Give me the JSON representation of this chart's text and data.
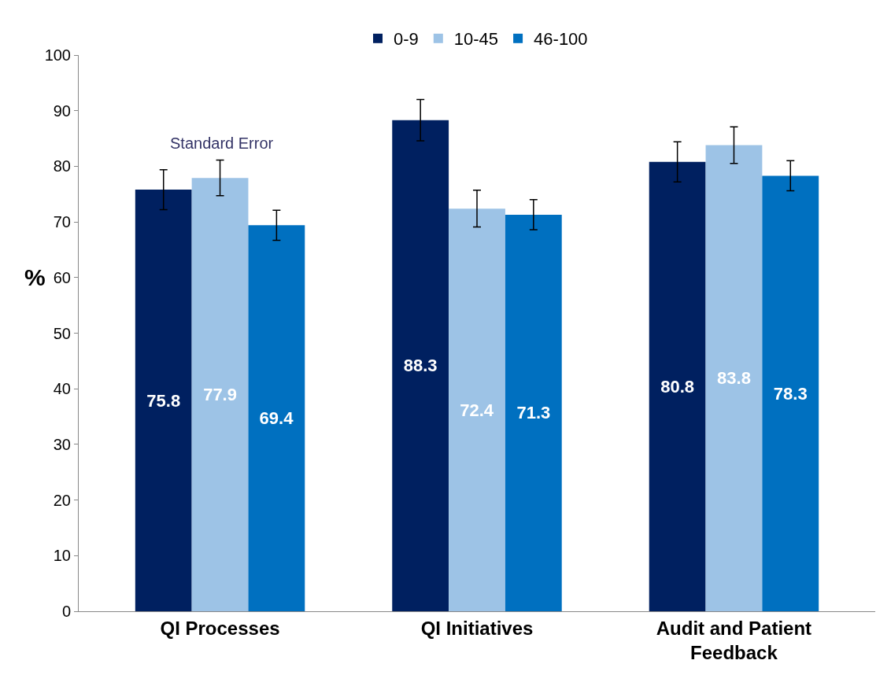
{
  "chart_data": {
    "type": "bar",
    "ylabel": "%",
    "categories": [
      "QI Processes",
      "QI Initiatives",
      "Audit and Patient Feedback"
    ],
    "series": [
      {
        "name": "0-9",
        "color": "#002060",
        "values": [
          75.8,
          88.3,
          80.8
        ],
        "errors": [
          3.6,
          3.7,
          3.6
        ]
      },
      {
        "name": "10-45",
        "color": "#9dc3e6",
        "values": [
          77.9,
          72.4,
          83.8
        ],
        "errors": [
          3.2,
          3.3,
          3.3
        ]
      },
      {
        "name": "46-100",
        "color": "#0070c0",
        "values": [
          69.4,
          71.3,
          78.3
        ],
        "errors": [
          2.7,
          2.7,
          2.7
        ]
      }
    ],
    "ylim": [
      0,
      100
    ],
    "yticks": [
      0,
      10,
      20,
      30,
      40,
      50,
      60,
      70,
      80,
      90,
      100
    ],
    "annotations": [
      "Standard Error"
    ],
    "data_labels": true,
    "legend": "top"
  }
}
